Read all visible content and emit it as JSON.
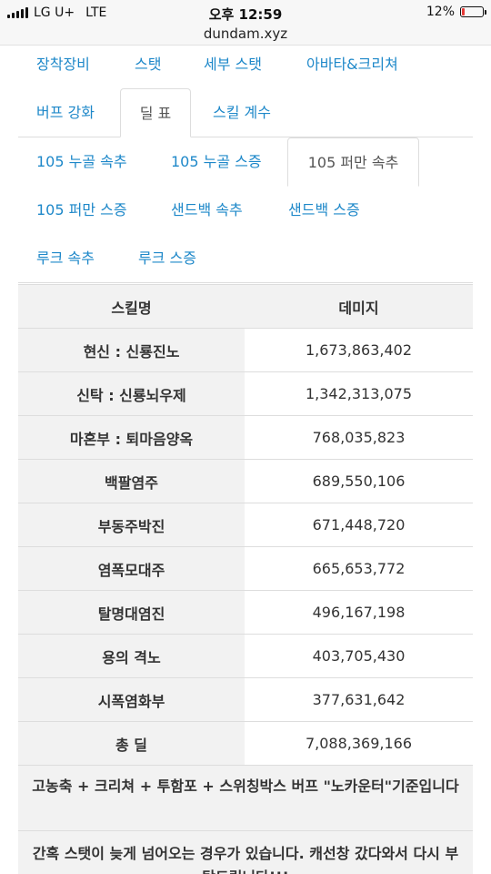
{
  "status": {
    "carrier": "LG U+",
    "network": "LTE",
    "time": "오후 12:59",
    "battery": "12%",
    "battery_level": 0.12
  },
  "url": "dundam.xyz",
  "main_tabs": [
    "장착장비",
    "스탯",
    "세부 스탯",
    "아바타&크리쳐",
    "버프 강화",
    "딜 표",
    "스킬 계수"
  ],
  "sub_tabs": [
    "105 누골 속추",
    "105 누골 스증",
    "105 퍼만 속추",
    "105 퍼만 스증",
    "샌드백 속추",
    "샌드백 스증",
    "루크 속추",
    "루크 스증"
  ],
  "table": {
    "headers": [
      "스킬명",
      "데미지"
    ],
    "rows": [
      {
        "name": "현신 : 신룡진노",
        "damage": "1,673,863,402"
      },
      {
        "name": "신탁 : 신룡뇌우제",
        "damage": "1,342,313,075"
      },
      {
        "name": "마혼부 : 퇴마음양옥",
        "damage": "768,035,823"
      },
      {
        "name": "백팔염주",
        "damage": "689,550,106"
      },
      {
        "name": "부동주박진",
        "damage": "671,448,720"
      },
      {
        "name": "염폭모대주",
        "damage": "665,653,772"
      },
      {
        "name": "탈명대염진",
        "damage": "496,167,198"
      },
      {
        "name": "용의 격노",
        "damage": "403,705,430"
      },
      {
        "name": "시폭염화부",
        "damage": "377,631,642"
      },
      {
        "name": "총 딜",
        "damage": "7,088,369,166"
      }
    ]
  },
  "notes": [
    "고농축 + 크리쳐 + 투함포 + 스위칭박스 버프 \"노카운터\"기준입니다",
    "간혹 스탯이 늦게 넘어오는 경우가 있습니다. 캐선창 갔다와서 다시 부탁드립니다!!!"
  ]
}
